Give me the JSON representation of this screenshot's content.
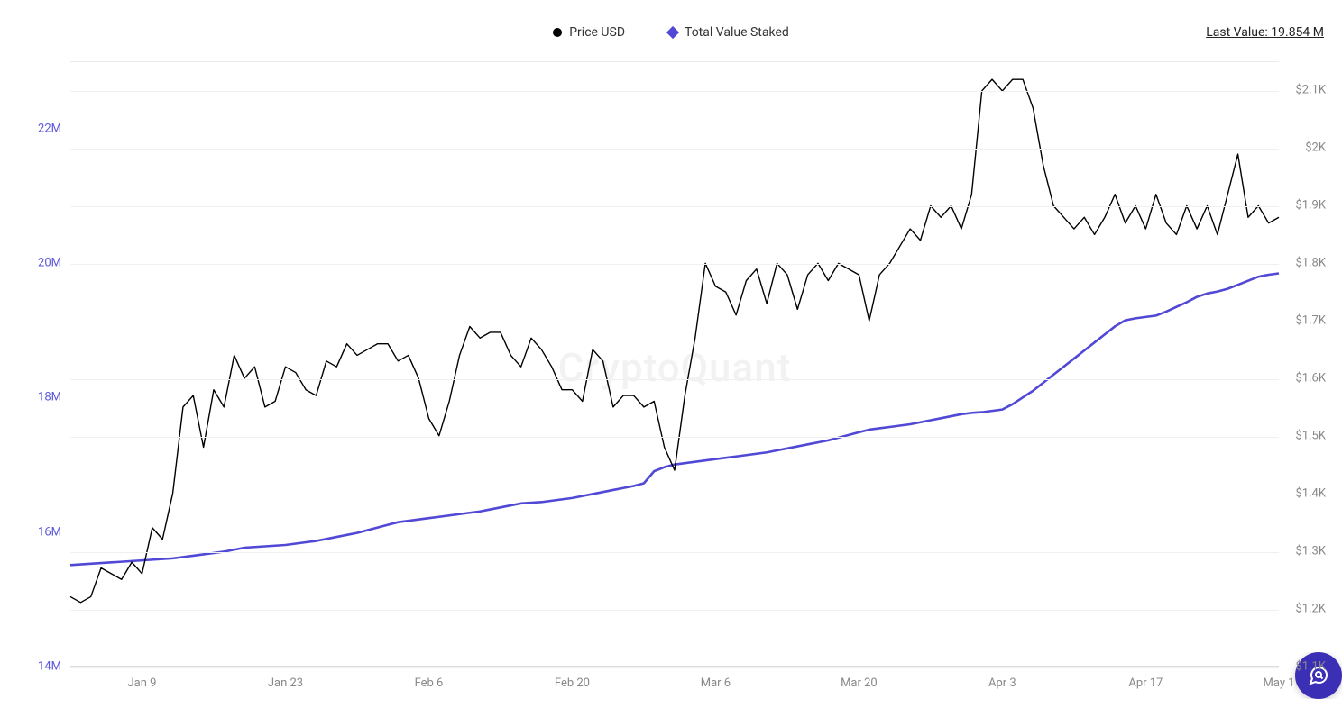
{
  "chart": {
    "type": "line-dual-axis",
    "watermark": "CryptoQuant",
    "background_color": "#ffffff",
    "grid_color": "#f0f0f0",
    "axis_line_color": "#dddddd",
    "font_size_axis": 13,
    "font_size_legend": 14,
    "legend": [
      {
        "label": "Price USD",
        "marker": "circle",
        "color": "#000000"
      },
      {
        "label": "Total Value Staked",
        "marker": "diamond",
        "color": "#5148d6"
      }
    ],
    "last_value": {
      "label": "Last Value: 19.854 M"
    },
    "x_axis": {
      "categories": [
        "Jan 9",
        "Jan 23",
        "Feb 6",
        "Feb 20",
        "Mar 6",
        "Mar 20",
        "Apr 3",
        "Apr 17",
        "May 1"
      ],
      "label_color": "#888888"
    },
    "y_left": {
      "min": 14,
      "max": 23,
      "ticks": [
        14,
        16,
        18,
        20,
        22
      ],
      "tick_labels": [
        "14M",
        "16M",
        "18M",
        "20M",
        "22M"
      ],
      "label_color": "#5a57d8"
    },
    "y_right": {
      "min": 1.1,
      "max": 2.15,
      "ticks": [
        1.1,
        1.2,
        1.3,
        1.4,
        1.5,
        1.6,
        1.7,
        1.8,
        1.9,
        2.0,
        2.1
      ],
      "tick_labels": [
        "$1.1K",
        "$1.2K",
        "$1.3K",
        "$1.4K",
        "$1.5K",
        "$1.6K",
        "$1.7K",
        "$1.8K",
        "$1.9K",
        "$2K",
        "$2.1K"
      ],
      "label_color": "#888888"
    },
    "series_price": {
      "name": "Price USD",
      "color": "#000000",
      "line_width": 1.4,
      "axis": "right",
      "data": [
        1.22,
        1.21,
        1.22,
        1.27,
        1.26,
        1.25,
        1.28,
        1.26,
        1.34,
        1.32,
        1.4,
        1.55,
        1.57,
        1.48,
        1.58,
        1.55,
        1.64,
        1.6,
        1.62,
        1.55,
        1.56,
        1.62,
        1.61,
        1.58,
        1.57,
        1.63,
        1.62,
        1.66,
        1.64,
        1.65,
        1.66,
        1.66,
        1.63,
        1.64,
        1.6,
        1.53,
        1.5,
        1.56,
        1.64,
        1.69,
        1.67,
        1.68,
        1.68,
        1.64,
        1.62,
        1.67,
        1.65,
        1.62,
        1.58,
        1.58,
        1.56,
        1.65,
        1.63,
        1.55,
        1.57,
        1.57,
        1.55,
        1.56,
        1.48,
        1.44,
        1.57,
        1.67,
        1.8,
        1.76,
        1.75,
        1.71,
        1.77,
        1.79,
        1.73,
        1.8,
        1.78,
        1.72,
        1.78,
        1.8,
        1.77,
        1.8,
        1.79,
        1.78,
        1.7,
        1.78,
        1.8,
        1.83,
        1.86,
        1.84,
        1.9,
        1.88,
        1.9,
        1.86,
        1.92,
        2.1,
        2.12,
        2.1,
        2.12,
        2.12,
        2.07,
        1.97,
        1.9,
        1.88,
        1.86,
        1.88,
        1.85,
        1.88,
        1.92,
        1.87,
        1.9,
        1.86,
        1.92,
        1.87,
        1.85,
        1.9,
        1.86,
        1.9,
        1.85,
        1.92,
        1.99,
        1.88,
        1.9,
        1.87,
        1.88
      ]
    },
    "series_staked": {
      "name": "Total Value Staked",
      "color": "#5148d6",
      "line_width": 2.6,
      "axis": "left",
      "data": [
        15.5,
        15.51,
        15.52,
        15.53,
        15.54,
        15.55,
        15.56,
        15.57,
        15.58,
        15.59,
        15.6,
        15.62,
        15.64,
        15.66,
        15.68,
        15.7,
        15.73,
        15.76,
        15.77,
        15.78,
        15.79,
        15.8,
        15.82,
        15.84,
        15.86,
        15.89,
        15.92,
        15.95,
        15.98,
        16.02,
        16.06,
        16.1,
        16.14,
        16.16,
        16.18,
        16.2,
        16.22,
        16.24,
        16.26,
        16.28,
        16.3,
        16.33,
        16.36,
        16.39,
        16.42,
        16.43,
        16.44,
        16.46,
        16.48,
        16.5,
        16.53,
        16.56,
        16.59,
        16.62,
        16.65,
        16.68,
        16.72,
        16.9,
        16.96,
        17.0,
        17.02,
        17.04,
        17.06,
        17.08,
        17.1,
        17.12,
        17.14,
        17.16,
        17.18,
        17.21,
        17.24,
        17.27,
        17.3,
        17.33,
        17.36,
        17.4,
        17.44,
        17.48,
        17.52,
        17.54,
        17.56,
        17.58,
        17.6,
        17.63,
        17.66,
        17.69,
        17.72,
        17.75,
        17.77,
        17.78,
        17.8,
        17.82,
        17.9,
        18.0,
        18.1,
        18.22,
        18.34,
        18.46,
        18.58,
        18.7,
        18.82,
        18.94,
        19.06,
        19.15,
        19.18,
        19.2,
        19.22,
        19.28,
        19.35,
        19.42,
        19.5,
        19.55,
        19.58,
        19.62,
        19.68,
        19.74,
        19.8,
        19.83,
        19.85
      ]
    }
  },
  "fab": {
    "icon": "chat-search"
  }
}
